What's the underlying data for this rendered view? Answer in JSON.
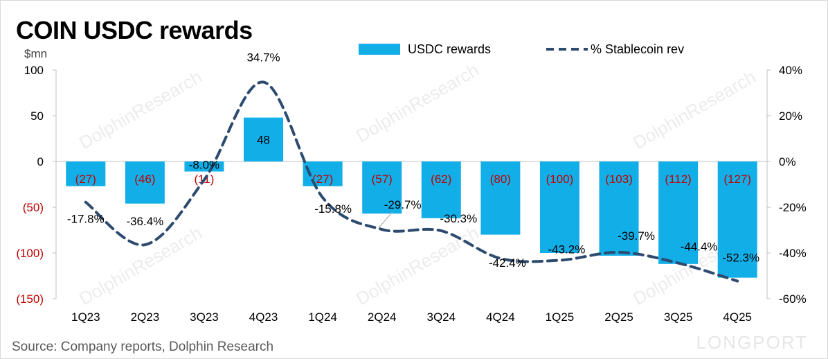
{
  "title": "COIN USDC rewards",
  "unit": "$mn",
  "source": "Source:  Company reports, Dolphin Research",
  "watermark": "DolphinResearch",
  "brand": "LONGPORT",
  "chart_data": {
    "type": "bar",
    "title": "COIN USDC rewards",
    "categories": [
      "1Q23",
      "2Q23",
      "3Q23",
      "4Q23",
      "1Q24",
      "2Q24",
      "3Q24",
      "4Q24",
      "1Q25",
      "2Q25",
      "3Q25",
      "4Q25"
    ],
    "ylim": [
      -150,
      100
    ],
    "y2lim": [
      -60,
      40
    ],
    "left_ticks": [
      "100",
      "50",
      "0",
      "(50)",
      "(100)",
      "(150)"
    ],
    "right_ticks": [
      "40%",
      "20%",
      "0%",
      "-20%",
      "-40%",
      "-60%"
    ],
    "grid": false,
    "legend_position": "top",
    "series": [
      {
        "name": "USDC rewards",
        "type": "bar",
        "axis": "left",
        "color": "#12aee8",
        "values": [
          -27,
          -46,
          -11,
          48,
          -27,
          -57,
          -62,
          -80,
          -100,
          -103,
          -112,
          -127
        ],
        "labels": [
          "(27)",
          "(46)",
          "(11)",
          "48",
          "(27)",
          "(57)",
          "(62)",
          "(80)",
          "(100)",
          "(103)",
          "(112)",
          "(127)"
        ]
      },
      {
        "name": "% Stablecoin rev",
        "type": "line",
        "style": "dashed",
        "axis": "right",
        "color": "#2d4a6f",
        "values": [
          -17.8,
          -36.4,
          -8.0,
          34.7,
          -15.8,
          -29.7,
          -30.3,
          -42.4,
          -43.2,
          -39.7,
          -44.4,
          -52.3
        ],
        "labels": [
          "-17.8%",
          "-36.4%",
          "-8.0%",
          "34.7%",
          "-15.8%",
          "-29.7%",
          "-30.3%",
          "-42.4%",
          "-43.2%",
          "-39.7%",
          "-44.4%",
          "-52.3%"
        ]
      }
    ],
    "colors": {
      "negative_label": "#c00000",
      "bar": "#12aee8",
      "line": "#2d4a6f"
    }
  }
}
